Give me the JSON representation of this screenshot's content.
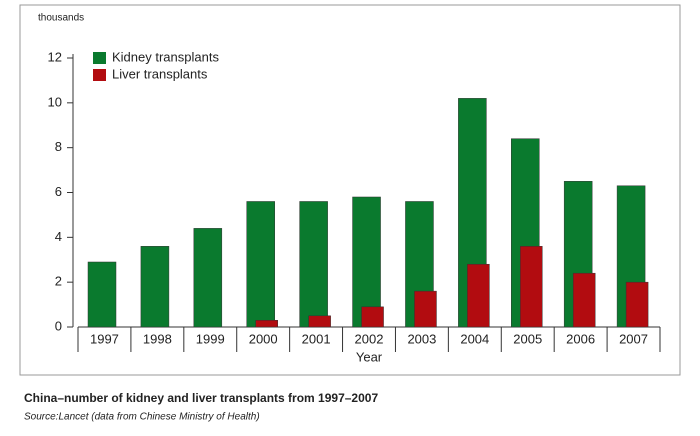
{
  "chart_data": {
    "type": "bar",
    "y_unit_label": "thousands",
    "x_label": "Year",
    "caption": "China–number of kidney and liver transplants from 1997–2007",
    "source": "Source:Lancet (data from Chinese Ministry of Health)",
    "categories": [
      "1997",
      "1998",
      "1999",
      "2000",
      "2001",
      "2002",
      "2003",
      "2004",
      "2005",
      "2006",
      "2007"
    ],
    "series": [
      {
        "name": "Kidney transplants",
        "color": "#0a7a2e",
        "values": [
          2.9,
          3.6,
          4.4,
          5.6,
          5.6,
          5.8,
          5.6,
          10.2,
          8.4,
          6.5,
          6.3
        ]
      },
      {
        "name": "Liver transplants",
        "color": "#b20c10",
        "values": [
          null,
          null,
          null,
          0.3,
          0.5,
          0.9,
          1.6,
          2.8,
          3.6,
          2.4,
          2.0
        ]
      }
    ],
    "ylim": [
      0,
      12
    ],
    "yticks": [
      0,
      2,
      4,
      6,
      8,
      10,
      12
    ],
    "legend": "upper left"
  }
}
